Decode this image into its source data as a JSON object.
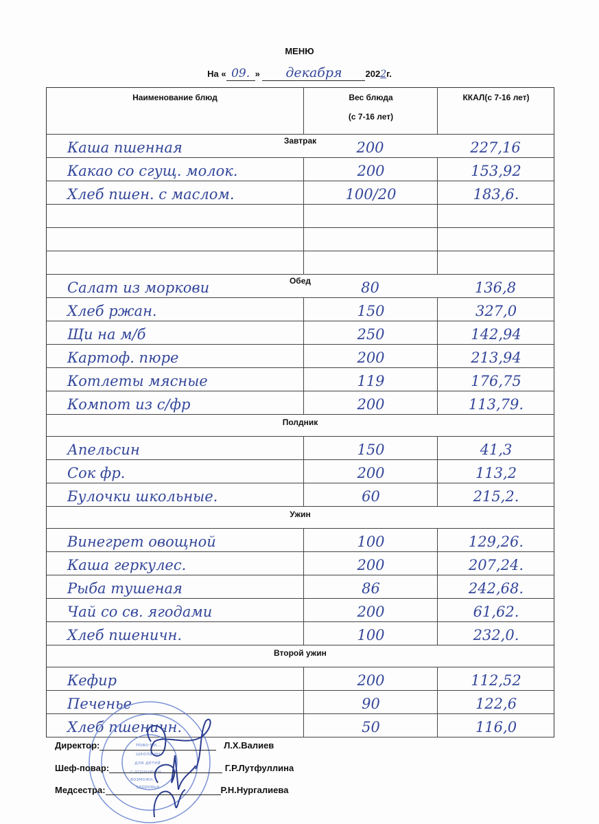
{
  "title": "МЕНЮ",
  "date_line": {
    "prefix": "На «",
    "day": "09.",
    "mid": "»",
    "month": "декабря",
    "year_prefix": "202",
    "year_digit": "2",
    "suffix": "г."
  },
  "columns": [
    "Наименование блюд",
    "Вес блюда",
    "(с 7-16 лет)",
    "ККАЛ(с 7-16 лет)"
  ],
  "sections": [
    {
      "label": "Завтрак",
      "inline": true,
      "items": [
        {
          "name": "Каша пшенная",
          "weight": "200",
          "kcal": "227,16"
        },
        {
          "name": "Какао со сгущ. молок.",
          "weight": "200",
          "kcal": "153,92"
        },
        {
          "name": "Хлеб пшен. с маслом.",
          "weight": "100/20",
          "kcal": "183,6."
        },
        {
          "name": "",
          "weight": "",
          "kcal": ""
        },
        {
          "name": "",
          "weight": "",
          "kcal": ""
        },
        {
          "name": "",
          "weight": "",
          "kcal": ""
        }
      ]
    },
    {
      "label": "Обед",
      "inline": true,
      "items": [
        {
          "name": "Салат из моркови",
          "weight": "80",
          "kcal": "136,8"
        },
        {
          "name": "Хлеб ржан.",
          "weight": "150",
          "kcal": "327,0"
        },
        {
          "name": "Щи на м/б",
          "weight": "250",
          "kcal": "142,94"
        },
        {
          "name": "Картоф. пюре",
          "weight": "200",
          "kcal": "213,94"
        },
        {
          "name": "Котлеты мясные",
          "weight": "119",
          "kcal": "176,75"
        },
        {
          "name": "Компот из с/фр",
          "weight": "200",
          "kcal": "113,79."
        }
      ]
    },
    {
      "label": "Полдник",
      "inline": false,
      "items": [
        {
          "name": "Апельсин",
          "weight": "150",
          "kcal": "41,3"
        },
        {
          "name": "Сок фр.",
          "weight": "200",
          "kcal": "113,2"
        },
        {
          "name": "Булочки школьные.",
          "weight": "60",
          "kcal": "215,2."
        }
      ]
    },
    {
      "label": "Ужин",
      "inline": false,
      "items": [
        {
          "name": "Винегрет овощной",
          "weight": "100",
          "kcal": "129,26."
        },
        {
          "name": "Каша геркулес.",
          "weight": "200",
          "kcal": "207,24."
        },
        {
          "name": "Рыба тушеная",
          "weight": "86",
          "kcal": "242,68."
        },
        {
          "name": "Чай со св. ягодами",
          "weight": "200",
          "kcal": "61,62."
        },
        {
          "name": "Хлеб пшеничн.",
          "weight": "100",
          "kcal": "232,0."
        }
      ]
    },
    {
      "label": "Второй ужин",
      "inline": false,
      "items": [
        {
          "name": "Кефир",
          "weight": "200",
          "kcal": "112,52"
        },
        {
          "name": "Печенье",
          "weight": "90",
          "kcal": "122,6"
        },
        {
          "name": "Хлеб пшеничн.",
          "weight": "50",
          "kcal": "116,0"
        }
      ]
    }
  ],
  "signatures": [
    {
      "role": "Директор:",
      "name": "Л.Х.Валиев"
    },
    {
      "role": "Шеф-повар:",
      "name": "Г.Р.Лутфуллина"
    },
    {
      "role": "Медсестра:",
      "name": "Р.Н.Нургалиева"
    }
  ],
  "stamp": {
    "text": "Ново-Кинерская школа-интернат для детей с ограниченными возможностями здоровья",
    "color": "#4a6bc4"
  },
  "ink_color": "#34479a"
}
